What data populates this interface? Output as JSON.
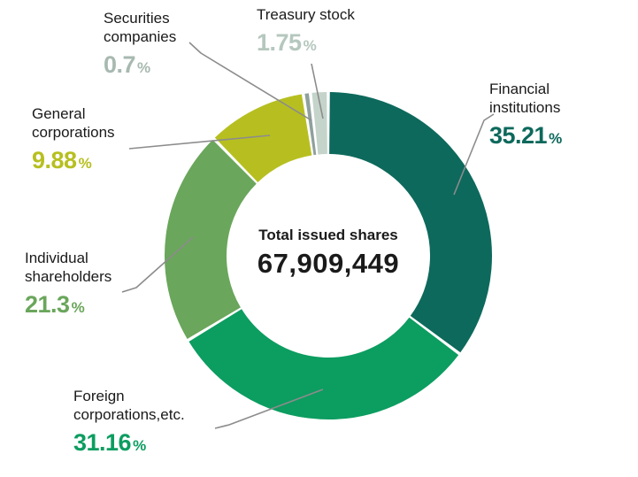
{
  "chart_data": {
    "type": "pie",
    "subtype": "donut",
    "legend_position": "callouts",
    "percent_symbol": "%",
    "center": {
      "label": "Total issued shares",
      "value": "67,909,449"
    },
    "segments": [
      {
        "label": "Financial institutions",
        "label_lines": [
          "Financial",
          "institutions"
        ],
        "value": 35.21,
        "pct": "35.21",
        "color": "#0d695c",
        "pct_color": "#0d695c"
      },
      {
        "label": "Foreign corporations,etc.",
        "label_lines": [
          "Foreign",
          "corporations,etc."
        ],
        "value": 31.16,
        "pct": "31.16",
        "color": "#0c9d60",
        "pct_color": "#0c9d60"
      },
      {
        "label": "Individual shareholders",
        "label_lines": [
          "Individual",
          "shareholders"
        ],
        "value": 21.3,
        "pct": "21.3",
        "color": "#6aa65b",
        "pct_color": "#6aa65b"
      },
      {
        "label": "General corporations",
        "label_lines": [
          "General",
          "corporations"
        ],
        "value": 9.88,
        "pct": "9.88",
        "color": "#b7bf20",
        "pct_color": "#b7bf20"
      },
      {
        "label": "Securities companies",
        "label_lines": [
          "Securities",
          "companies"
        ],
        "value": 0.7,
        "pct": "0.7",
        "color": "#8fa09d",
        "pct_color": "#a7b9b0"
      },
      {
        "label": "Treasury stock",
        "label_lines": [
          "Treasury stock"
        ],
        "value": 1.75,
        "pct": "1.75",
        "color": "#c5d4cb",
        "pct_color": "#b5c7be"
      }
    ],
    "start_angle_deg": -90,
    "direction": "clockwise"
  }
}
